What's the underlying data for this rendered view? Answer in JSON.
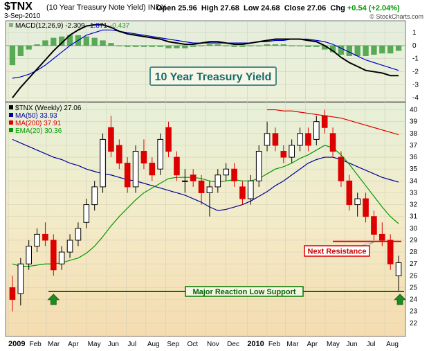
{
  "header": {
    "ticker": "$TNX",
    "name": "(10 Year Treasury Note Yield)",
    "exchange": "INDX",
    "date": "3-Sep-2010",
    "open_label": "Open",
    "open": "25.96",
    "high_label": "High",
    "high": "27.68",
    "low_label": "Low",
    "low": "24.68",
    "close_label": "Close",
    "close": "27.06",
    "chg_label": "Chg",
    "chg": "+0.54 (+2.04%)",
    "credit": "© StockCharts.com"
  },
  "colors": {
    "up": "#000000",
    "down": "#dd0000",
    "ma50": "#000099",
    "ma200": "#dd0000",
    "ema20": "#009900",
    "support": "#007700",
    "resistance": "#dd0000",
    "macd_line": "#000000",
    "macd_signal": "#0000cc",
    "macd_hist": "#339933"
  },
  "chart_data": [
    {
      "type": "line",
      "panel": "macd",
      "title": "MACD(12,26,9)",
      "legend": [
        "MACD(12,26,9) -2.309",
        "-1.871",
        "-0.437"
      ],
      "ylim": [
        -4.2,
        1.8
      ],
      "yticks": [
        1,
        0,
        -1,
        -2,
        -3,
        -4
      ],
      "series": [
        {
          "name": "MACD",
          "values": [
            -4.0,
            -3.2,
            -2.5,
            -1.8,
            -1.1,
            -0.4,
            0.2,
            0.8,
            1.2,
            1.5,
            1.6,
            1.6,
            1.4,
            1.1,
            0.9,
            0.8,
            0.7,
            0.6,
            0.5,
            0.3,
            0.2,
            0.1,
            0.1,
            0.2,
            0.3,
            0.3,
            0.2,
            0.1,
            0.1,
            0.2,
            0.3,
            0.4,
            0.5,
            0.5,
            0.5,
            0.5,
            0.4,
            0.3,
            0.0,
            -0.4,
            -0.9,
            -1.3,
            -1.6,
            -1.9,
            -2.0,
            -2.1,
            -2.3,
            -2.3
          ]
        },
        {
          "name": "Signal",
          "values": [
            -2.5,
            -2.4,
            -2.2,
            -1.9,
            -1.5,
            -1.0,
            -0.5,
            0.0,
            0.4,
            0.8,
            1.0,
            1.2,
            1.2,
            1.1,
            1.0,
            0.9,
            0.8,
            0.7,
            0.6,
            0.5,
            0.4,
            0.3,
            0.2,
            0.2,
            0.2,
            0.2,
            0.2,
            0.2,
            0.2,
            0.2,
            0.3,
            0.3,
            0.4,
            0.4,
            0.5,
            0.5,
            0.5,
            0.4,
            0.3,
            0.1,
            -0.2,
            -0.5,
            -0.8,
            -1.1,
            -1.3,
            -1.5,
            -1.7,
            -1.9
          ]
        },
        {
          "name": "Histogram",
          "values": [
            -1.5,
            -0.8,
            -0.3,
            0.1,
            0.4,
            0.6,
            0.7,
            0.8,
            0.8,
            0.7,
            0.6,
            0.4,
            0.2,
            0.0,
            -0.1,
            -0.1,
            -0.1,
            -0.1,
            -0.1,
            -0.2,
            -0.2,
            -0.2,
            -0.1,
            0.0,
            0.1,
            0.1,
            0.0,
            -0.1,
            -0.1,
            0.0,
            0.0,
            0.1,
            0.1,
            0.1,
            0.0,
            0.0,
            -0.1,
            -0.1,
            -0.3,
            -0.5,
            -0.7,
            -0.8,
            -0.8,
            -0.8,
            -0.7,
            -0.6,
            -0.6,
            -0.4
          ]
        }
      ],
      "annotation": "10 Year Treasury Yield"
    },
    {
      "type": "candlestick",
      "panel": "price",
      "legend": [
        "$TNX (Weekly) 27.06",
        "MA(50) 33.93",
        "MA(200) 37.91",
        "EMA(20) 30.36"
      ],
      "ylim": [
        21,
        40.5
      ],
      "yticks": [
        40,
        39,
        38,
        37,
        36,
        35,
        34,
        33,
        32,
        31,
        30,
        29,
        28,
        27,
        26,
        25,
        24,
        23,
        22
      ],
      "x_months": [
        "2009",
        "Feb",
        "Mar",
        "Apr",
        "May",
        "Jun",
        "Jul",
        "Aug",
        "Sep",
        "Oct",
        "Nov",
        "Dec",
        "2010",
        "Feb",
        "Mar",
        "Apr",
        "May",
        "Jun",
        "Jul",
        "Aug"
      ],
      "ohlc": [
        [
          25.0,
          26.0,
          23.0,
          24.0
        ],
        [
          24.5,
          27.5,
          23.5,
          27.0
        ],
        [
          27.0,
          29.0,
          26.5,
          28.5
        ],
        [
          28.5,
          30.0,
          28.0,
          29.5
        ],
        [
          29.5,
          30.5,
          28.5,
          29.0
        ],
        [
          29.0,
          29.5,
          26.0,
          26.5
        ],
        [
          27.0,
          28.5,
          26.5,
          28.0
        ],
        [
          28.0,
          29.5,
          27.5,
          29.0
        ],
        [
          29.0,
          30.5,
          28.5,
          30.0
        ],
        [
          30.5,
          32.5,
          30.0,
          32.0
        ],
        [
          32.0,
          34.0,
          31.5,
          33.5
        ],
        [
          33.5,
          38.0,
          33.0,
          37.5
        ],
        [
          38.5,
          39.5,
          36.0,
          36.5
        ],
        [
          37.0,
          37.5,
          35.0,
          35.5
        ],
        [
          35.5,
          36.0,
          33.0,
          33.5
        ],
        [
          33.5,
          37.0,
          33.0,
          36.5
        ],
        [
          36.5,
          37.5,
          35.0,
          35.5
        ],
        [
          35.5,
          36.0,
          34.0,
          34.5
        ],
        [
          35.0,
          38.0,
          34.5,
          37.5
        ],
        [
          38.5,
          39.0,
          36.0,
          36.5
        ],
        [
          36.0,
          36.5,
          34.0,
          34.5
        ],
        [
          34.0,
          35.0,
          33.0,
          34.0
        ],
        [
          34.5,
          35.0,
          33.5,
          34.0
        ],
        [
          34.0,
          34.5,
          32.0,
          33.0
        ],
        [
          33.0,
          34.0,
          31.0,
          33.5
        ],
        [
          33.5,
          35.0,
          33.0,
          34.5
        ],
        [
          34.5,
          35.5,
          34.0,
          35.0
        ],
        [
          35.0,
          35.5,
          33.5,
          34.0
        ],
        [
          33.5,
          34.0,
          32.0,
          32.5
        ],
        [
          32.5,
          34.5,
          32.0,
          34.0
        ],
        [
          34.0,
          37.0,
          33.5,
          36.5
        ],
        [
          37.0,
          39.0,
          36.5,
          38.0
        ],
        [
          38.0,
          38.5,
          36.5,
          37.0
        ],
        [
          36.5,
          37.0,
          35.5,
          36.0
        ],
        [
          36.0,
          37.5,
          35.5,
          37.0
        ],
        [
          37.0,
          38.5,
          36.5,
          38.0
        ],
        [
          38.0,
          38.5,
          36.5,
          37.0
        ],
        [
          37.5,
          39.5,
          37.0,
          39.0
        ],
        [
          39.5,
          40.0,
          38.0,
          38.5
        ],
        [
          38.0,
          38.5,
          36.0,
          36.5
        ],
        [
          36.0,
          36.5,
          33.5,
          34.0
        ],
        [
          34.0,
          34.5,
          31.5,
          32.0
        ],
        [
          32.0,
          33.0,
          31.0,
          32.5
        ],
        [
          32.5,
          33.0,
          30.5,
          31.0
        ],
        [
          31.0,
          31.5,
          29.0,
          29.5
        ],
        [
          29.5,
          30.5,
          28.5,
          29.0
        ],
        [
          29.0,
          29.5,
          26.5,
          27.0
        ],
        [
          26.0,
          27.7,
          24.7,
          27.1
        ]
      ],
      "ma50": [
        37.5,
        37.2,
        36.9,
        36.6,
        36.3,
        36.0,
        35.8,
        35.5,
        35.3,
        35.0,
        34.8,
        34.6,
        34.5,
        34.3,
        34.1,
        34.0,
        33.8,
        33.6,
        33.4,
        33.2,
        33.0,
        32.8,
        32.5,
        32.2,
        31.8,
        31.5,
        31.6,
        31.8,
        32.0,
        32.3,
        32.7,
        33.1,
        33.6,
        34.0,
        34.5,
        35.0,
        35.5,
        35.8,
        36.0,
        36.0,
        35.8,
        35.5,
        35.2,
        34.9,
        34.6,
        34.3,
        34.1,
        33.9
      ],
      "ma200": [
        null,
        null,
        null,
        null,
        null,
        null,
        null,
        null,
        null,
        null,
        null,
        null,
        null,
        null,
        null,
        null,
        null,
        null,
        null,
        null,
        null,
        null,
        null,
        null,
        null,
        null,
        null,
        null,
        null,
        null,
        null,
        40.0,
        40.0,
        39.9,
        39.9,
        39.8,
        39.7,
        39.6,
        39.5,
        39.4,
        39.3,
        39.1,
        38.9,
        38.7,
        38.5,
        38.3,
        38.1,
        37.9
      ],
      "ema20": [
        27.0,
        26.8,
        26.8,
        26.9,
        27.0,
        27.0,
        27.1,
        27.3,
        27.5,
        27.9,
        28.5,
        29.3,
        30.2,
        31.0,
        31.7,
        32.4,
        33.0,
        33.4,
        33.8,
        34.2,
        34.3,
        34.3,
        34.3,
        34.2,
        34.0,
        33.9,
        34.0,
        34.1,
        34.0,
        34.0,
        34.2,
        34.6,
        35.0,
        35.2,
        35.5,
        35.9,
        36.2,
        36.6,
        37.0,
        36.8,
        36.2,
        35.4,
        34.5,
        33.6,
        32.7,
        31.8,
        31.0,
        30.4
      ],
      "annotations": {
        "support_label": "Major Reaction Low Support",
        "support_level": 24.68,
        "resistance_label": "Next Resistance",
        "resistance_level": 28.9
      }
    }
  ]
}
